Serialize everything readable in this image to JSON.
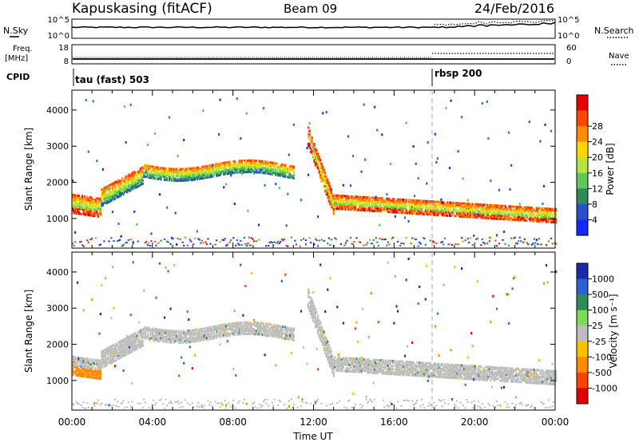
{
  "header": {
    "station": "Kapuskasing (fitACF)",
    "beam": "Beam 09",
    "date": "24/Feb/2016"
  },
  "side_labels": {
    "nsky": "N.Sky",
    "freq_line1": "Freq.",
    "freq_line2": "[MHz]",
    "cpid": "CPID",
    "nsearch": "N.Search",
    "nave": "Nave"
  },
  "cpid_modes": [
    {
      "label": "tau (fast) 503",
      "start_hour": 0
    },
    {
      "label": "rbsp 200",
      "start_hour": 18
    }
  ],
  "noise_axis": {
    "ticks": [
      "10^5",
      "10^0"
    ]
  },
  "freq_axis": {
    "left_ticks": [
      "18",
      "8"
    ],
    "right_ticks": [
      "60",
      "0"
    ]
  },
  "chart_data": [
    {
      "type": "heatmap",
      "name": "Power",
      "ylabel": "Slant Range [km]",
      "ylim": [
        180,
        4550
      ],
      "y_ticks": [
        1000,
        2000,
        3000,
        4000
      ],
      "x_ticks": [
        "00:00",
        "04:00",
        "08:00",
        "12:00",
        "16:00",
        "20:00",
        "00:00"
      ],
      "xlim_hours": [
        0,
        24
      ],
      "colorbar": {
        "label": "Power [dB]",
        "ticks": [
          "4",
          "8",
          "12",
          "16",
          "20",
          "24",
          "28"
        ],
        "range": [
          0,
          30
        ],
        "colors": [
          "#1428ff",
          "#2850c8",
          "#2e8b57",
          "#5ec85a",
          "#b4e63c",
          "#ffd700",
          "#ff8c00",
          "#ff4500",
          "#e60000"
        ]
      }
    },
    {
      "type": "heatmap",
      "name": "Velocity",
      "ylabel": "Slant Range [km]",
      "ylim": [
        180,
        4550
      ],
      "y_ticks": [
        1000,
        2000,
        3000,
        4000
      ],
      "x_ticks": [
        "00:00",
        "04:00",
        "08:00",
        "12:00",
        "16:00",
        "20:00",
        "00:00"
      ],
      "xlim_hours": [
        0,
        24
      ],
      "colorbar": {
        "label": "Velocity [m s⁻¹]",
        "ticks": [
          "1000",
          "500",
          "100",
          "25",
          "-25",
          "-100",
          "-500",
          "-1000"
        ],
        "colors": [
          "#1a2aa8",
          "#2d5fd0",
          "#2e8b57",
          "#7ed957",
          "#bebebe",
          "#ffc000",
          "#ff8c00",
          "#ff4000",
          "#e00000"
        ]
      }
    }
  ],
  "xaxis": {
    "label": "Time UT"
  }
}
